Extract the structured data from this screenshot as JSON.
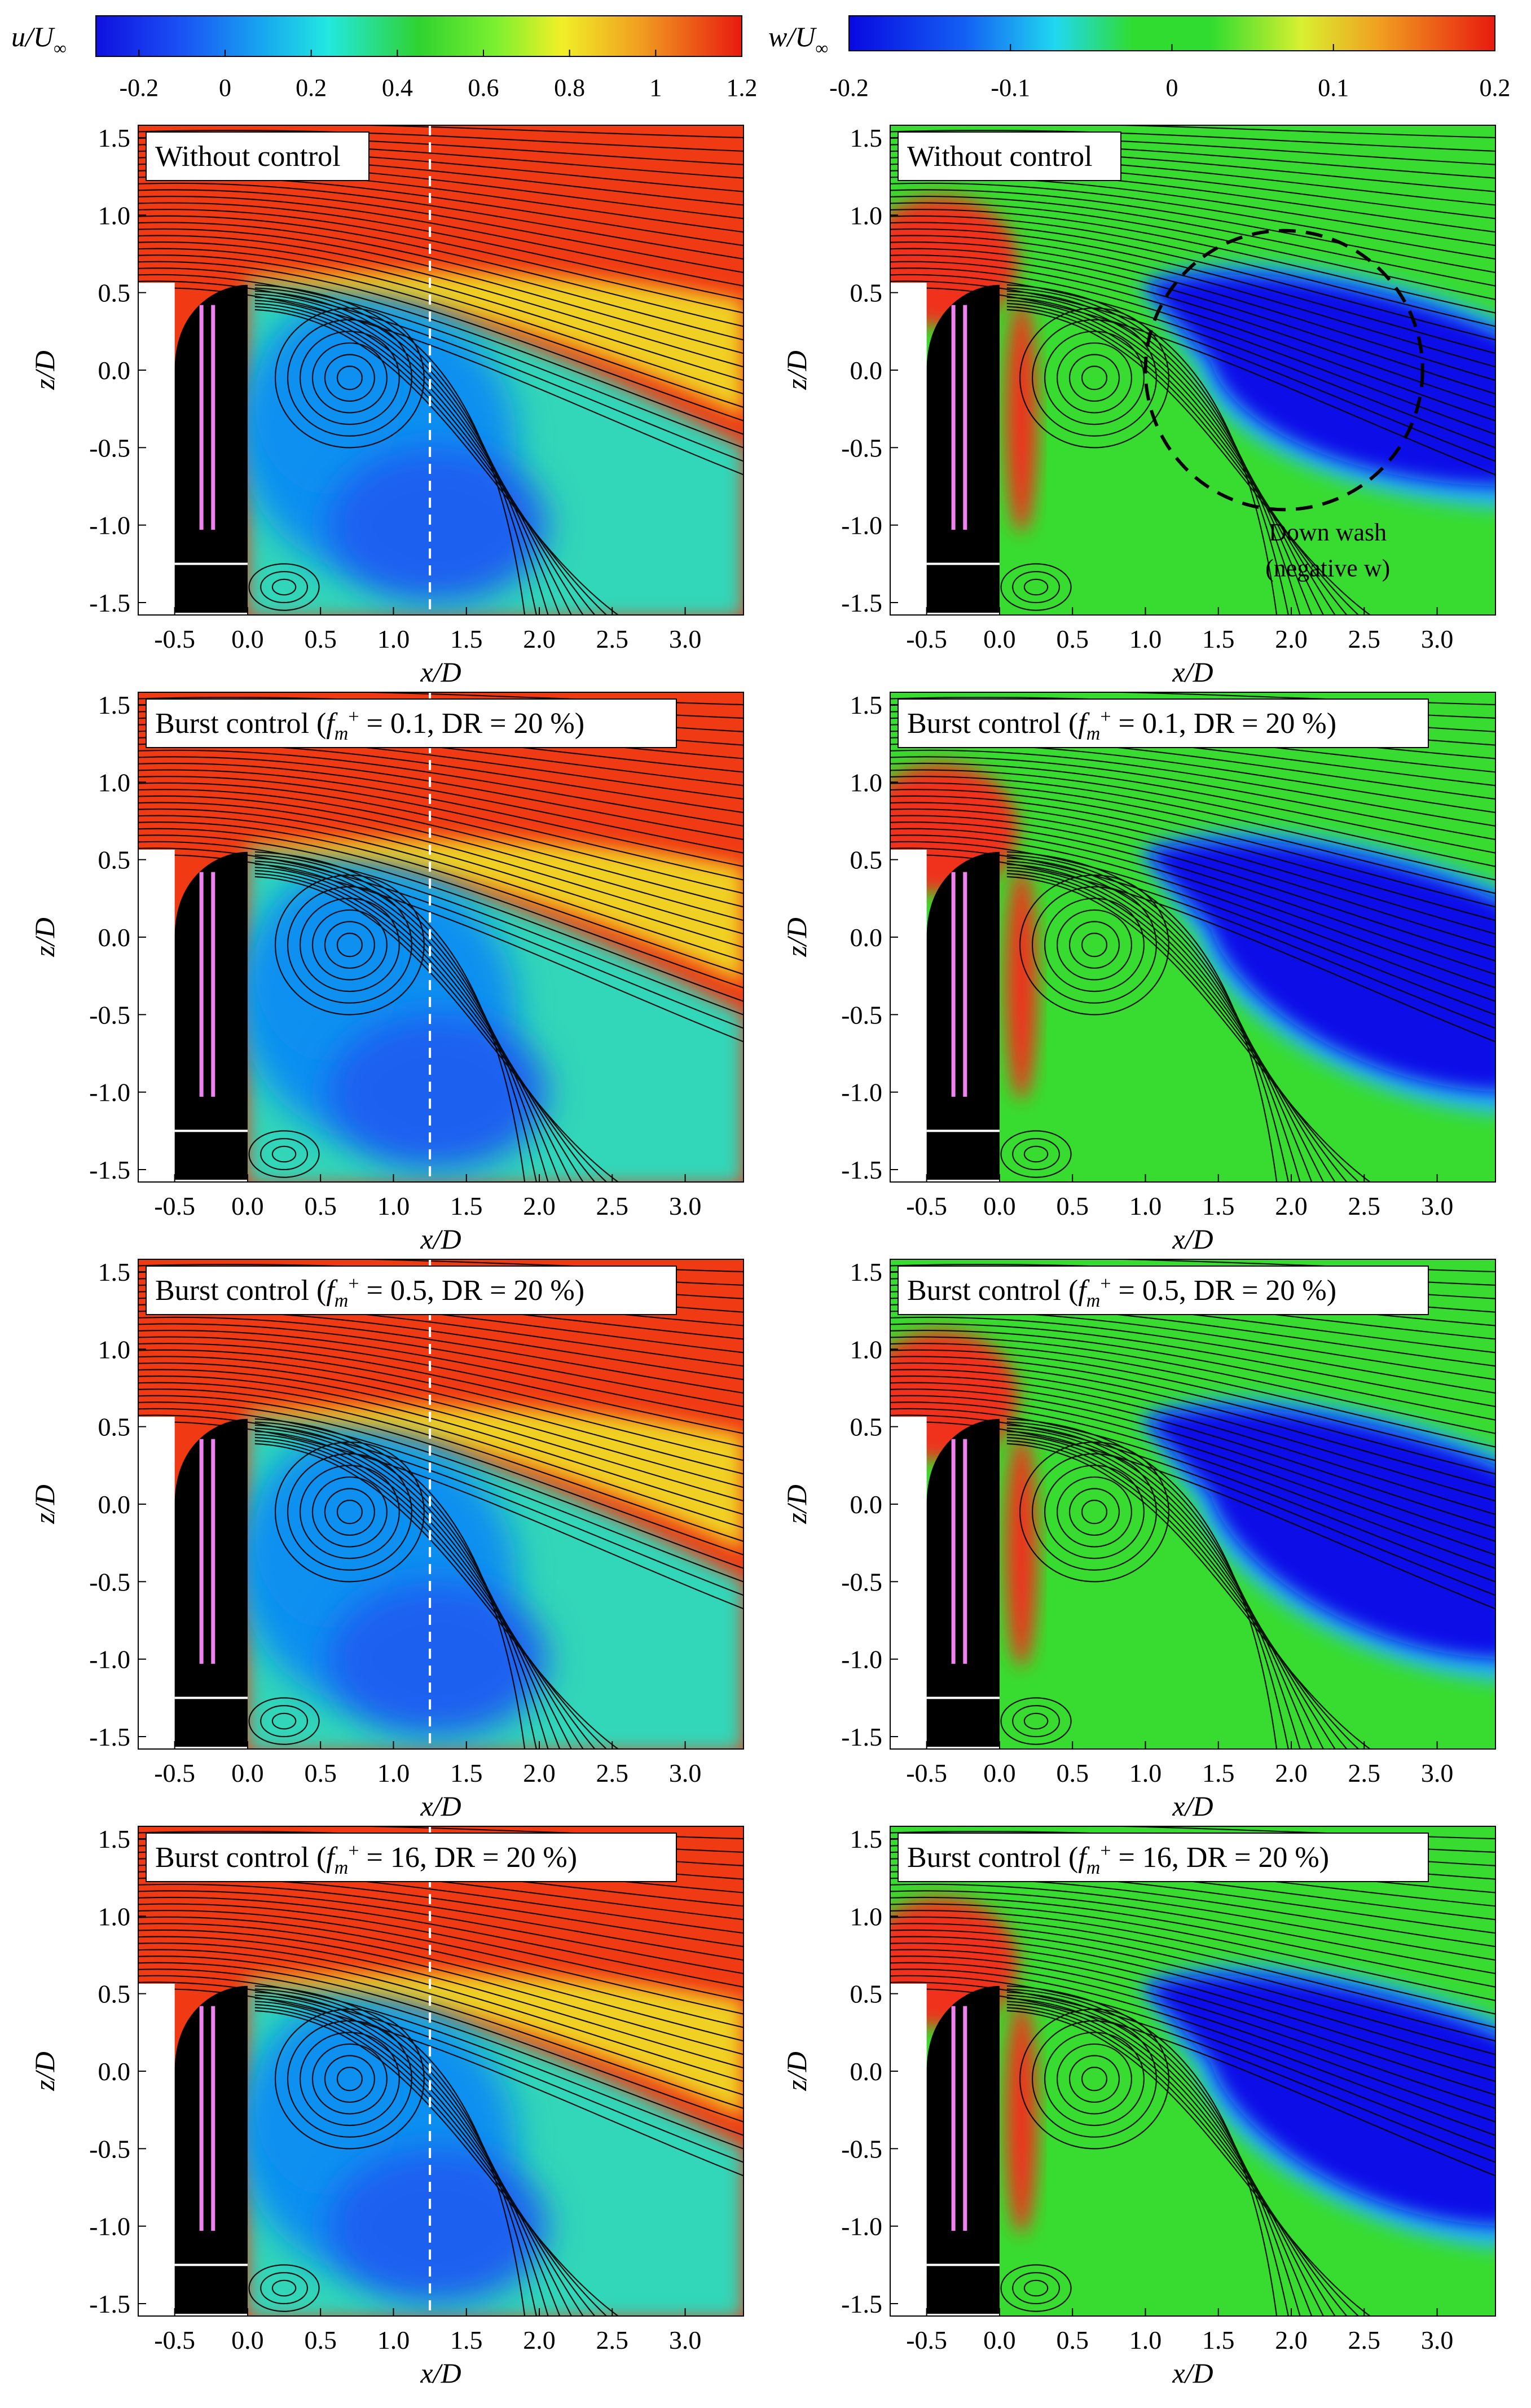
{
  "chart_data": {
    "type": "heatmap",
    "colorbars": [
      {
        "id": "u",
        "label_main": "u/U",
        "label_sub": "∞",
        "range": [
          -0.3,
          1.2
        ],
        "ticks": [
          -0.2,
          0,
          0.2,
          0.4,
          0.6,
          0.8,
          1,
          1.2
        ],
        "tick_labels": [
          "-0.2",
          "0",
          "0.2",
          "0.4",
          "0.6",
          "0.8",
          "1",
          "1.2"
        ]
      },
      {
        "id": "w",
        "label_main": "w/U",
        "label_sub": "∞",
        "range": [
          -0.2,
          0.2
        ],
        "ticks": [
          -0.2,
          -0.1,
          0,
          0.1,
          0.2
        ],
        "tick_labels": [
          "-0.2",
          "-0.1",
          "0",
          "0.1",
          "0.2"
        ]
      }
    ],
    "axes": {
      "xlabel": "x/D",
      "ylabel": "z/D",
      "xlim": [
        -0.75,
        3.4
      ],
      "ylim": [
        -1.58,
        1.58
      ],
      "xticks": [
        -0.5,
        0.0,
        0.5,
        1.0,
        1.5,
        2.0,
        2.5,
        3.0
      ],
      "xtick_labels": [
        "-0.5",
        "0.0",
        "0.5",
        "1.0",
        "1.5",
        "2.0",
        "2.5",
        "3.0"
      ],
      "yticks": [
        1.5,
        1.0,
        0.5,
        0.0,
        -0.5,
        -1.0,
        -1.5
      ],
      "ytick_labels": [
        "1.5",
        "1.0",
        "0.5",
        "0.0",
        "-0.5",
        "-1.0",
        "-1.5"
      ]
    },
    "panels": [
      {
        "row": 0,
        "field": "u",
        "title": "Without control",
        "dashed_line_x": 1.25
      },
      {
        "row": 0,
        "field": "w",
        "title": "Without control",
        "annotation_line1": "Down wash",
        "annotation_line2": "(negative w)",
        "dashed_circle": {
          "cx": 1.95,
          "cy": 0.0,
          "rx": 0.95,
          "ry": 0.9
        }
      },
      {
        "row": 1,
        "field": "u",
        "title_prefix": "Burst control (",
        "title_f": "f",
        "title_sub": "m",
        "title_sup": "+",
        "title_suffix": " = 0.1, DR = 20 %)",
        "dashed_line_x": 1.25
      },
      {
        "row": 1,
        "field": "w",
        "title_prefix": "Burst control (",
        "title_f": "f",
        "title_sub": "m",
        "title_sup": "+",
        "title_suffix": " = 0.1, DR = 20 %)"
      },
      {
        "row": 2,
        "field": "u",
        "title_prefix": "Burst control (",
        "title_f": "f",
        "title_sub": "m",
        "title_sup": "+",
        "title_suffix": " = 0.5, DR = 20 %)",
        "dashed_line_x": 1.25
      },
      {
        "row": 2,
        "field": "w",
        "title_prefix": "Burst control (",
        "title_f": "f",
        "title_sub": "m",
        "title_sup": "+",
        "title_suffix": " = 0.5, DR = 20 %)"
      },
      {
        "row": 3,
        "field": "u",
        "title_prefix": "Burst control (",
        "title_f": "f",
        "title_sub": "m",
        "title_sup": "+",
        "title_suffix": " = 16, DR = 20 %)",
        "dashed_line_x": 1.25
      },
      {
        "row": 3,
        "field": "w",
        "title_prefix": "Burst control (",
        "title_f": "f",
        "title_sub": "m",
        "title_sup": "+",
        "title_suffix": " = 16, DR = 20 %)"
      }
    ],
    "colors": {
      "u_field": {
        "freestream": "#f03a14",
        "shear": "#f0d020",
        "wake_mid": "#30d6b8",
        "wake_core": "#1090f0",
        "recirc": "#1a60f0"
      },
      "w_field": {
        "neutral": "#38dc30",
        "down": "#0a10e8",
        "down_edge": "#28b8f0",
        "up": "#f0301a"
      },
      "body": "#000000",
      "actuator": "#ee82ee",
      "streamline": "#000000"
    }
  }
}
